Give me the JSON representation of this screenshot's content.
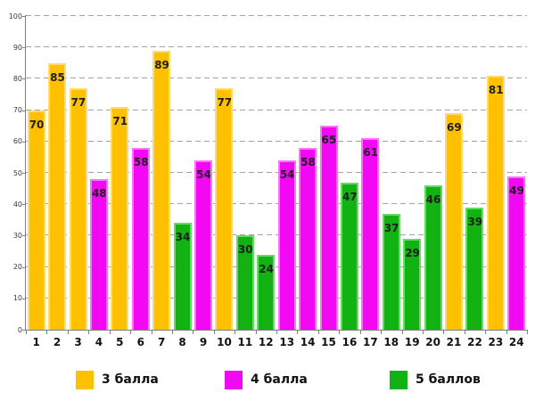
{
  "chart_data": {
    "type": "bar",
    "title": "",
    "xlabel": "",
    "ylabel": "",
    "ylim": [
      0,
      100
    ],
    "yticks": [
      0,
      10,
      20,
      30,
      40,
      50,
      60,
      70,
      80,
      90,
      100
    ],
    "grid": "horizontal-dashed",
    "legend_position": "bottom",
    "categories": [
      "1",
      "2",
      "3",
      "4",
      "5",
      "6",
      "7",
      "8",
      "9",
      "10",
      "11",
      "12",
      "13",
      "14",
      "15",
      "16",
      "17",
      "18",
      "19",
      "20",
      "21",
      "22",
      "23",
      "24"
    ],
    "bars": [
      {
        "category": "1",
        "value": 70,
        "series": "3 балла"
      },
      {
        "category": "2",
        "value": 85,
        "series": "3 балла"
      },
      {
        "category": "3",
        "value": 77,
        "series": "3 балла"
      },
      {
        "category": "4",
        "value": 48,
        "series": "4 балла"
      },
      {
        "category": "5",
        "value": 71,
        "series": "3 балла"
      },
      {
        "category": "6",
        "value": 58,
        "series": "4 балла"
      },
      {
        "category": "7",
        "value": 89,
        "series": "3 балла"
      },
      {
        "category": "8",
        "value": 34,
        "series": "5 баллов"
      },
      {
        "category": "9",
        "value": 54,
        "series": "4 балла"
      },
      {
        "category": "10",
        "value": 77,
        "series": "3 балла"
      },
      {
        "category": "11",
        "value": 30,
        "series": "5 баллов"
      },
      {
        "category": "12",
        "value": 24,
        "series": "5 баллов"
      },
      {
        "category": "13",
        "value": 54,
        "series": "4 балла"
      },
      {
        "category": "14",
        "value": 58,
        "series": "4 балла"
      },
      {
        "category": "15",
        "value": 65,
        "series": "4 балла"
      },
      {
        "category": "16",
        "value": 47,
        "series": "5 баллов"
      },
      {
        "category": "17",
        "value": 61,
        "series": "4 балла"
      },
      {
        "category": "18",
        "value": 37,
        "series": "5 баллов"
      },
      {
        "category": "19",
        "value": 29,
        "series": "5 баллов"
      },
      {
        "category": "20",
        "value": 46,
        "series": "5 баллов"
      },
      {
        "category": "21",
        "value": 69,
        "series": "3 балла"
      },
      {
        "category": "22",
        "value": 39,
        "series": "5 баллов"
      },
      {
        "category": "23",
        "value": 81,
        "series": "3 балла"
      },
      {
        "category": "24",
        "value": 49,
        "series": "4 балла"
      }
    ],
    "series": [
      {
        "name": "3 балла",
        "fill": "#FFC000",
        "edge": "#FFDC73"
      },
      {
        "name": "4 балла",
        "fill": "#F208F2",
        "edge": "#F875F8"
      },
      {
        "name": "5 баллов",
        "fill": "#12B212",
        "edge": "#67D967"
      }
    ]
  },
  "colors": {
    "background": "#FFFFFF",
    "grid": "#A3A3A3",
    "axis": "#808080",
    "value_label": "#1F1F1F"
  }
}
